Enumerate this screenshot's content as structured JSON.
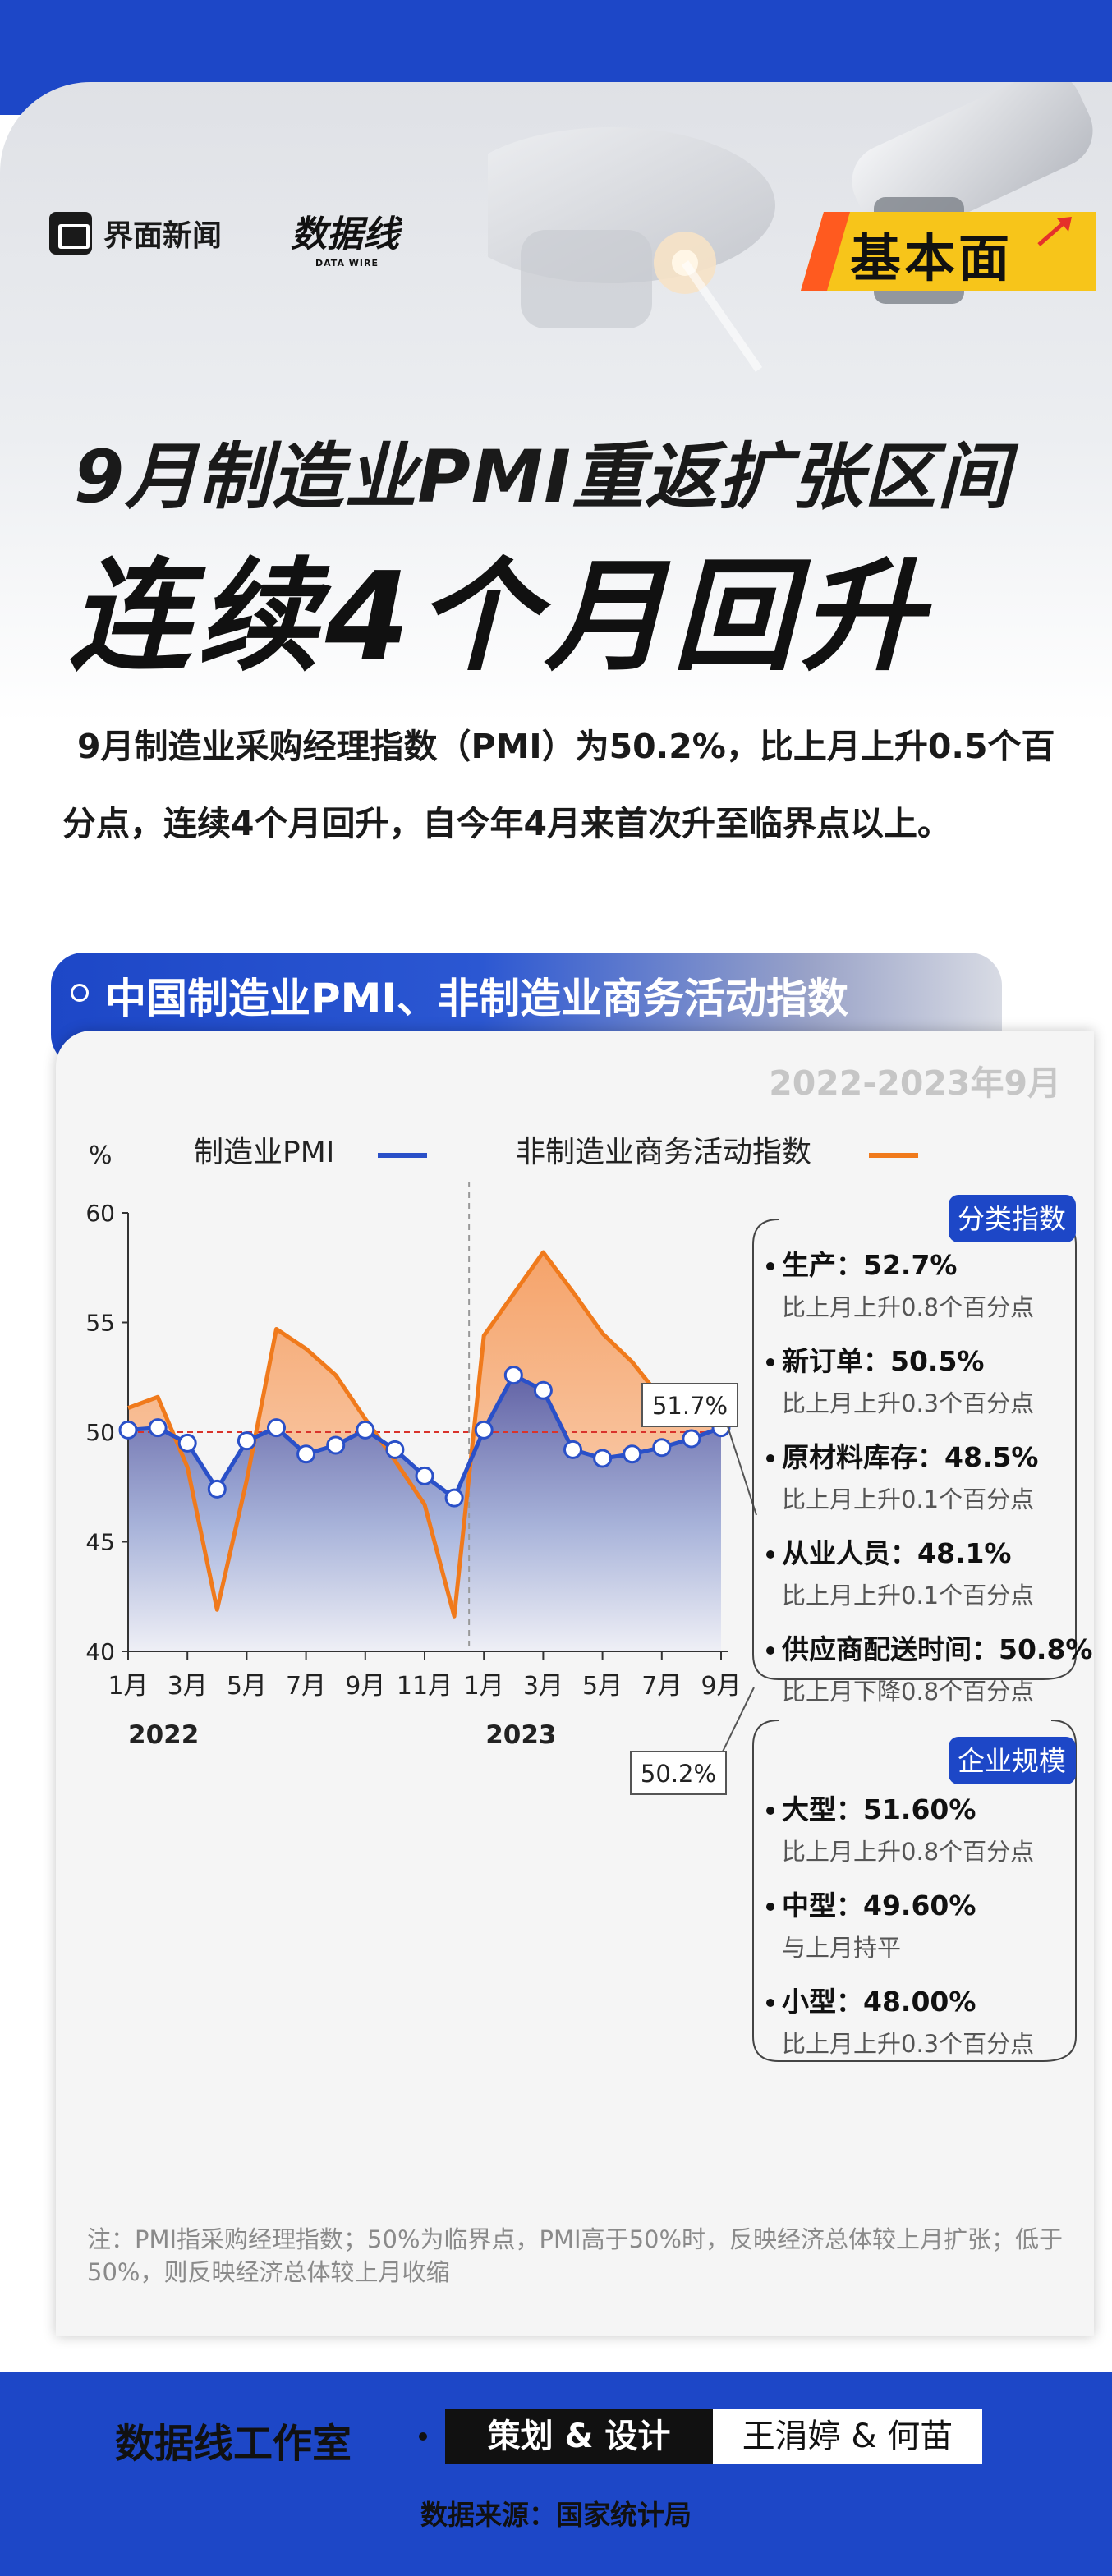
{
  "header": {
    "brand": "界面新闻",
    "logo_text": "数据线",
    "logo_sub": "DATA WIRE",
    "tag": "基本面"
  },
  "title": {
    "line1": "9月制造业PMI重返扩张区间",
    "line2": "连续4个月回升"
  },
  "intro": "9月制造业采购经理指数（PMI）为50.2%，比上月上升0.5个百分点，连续4个月回升，自今年4月来首次升至临界点以上。",
  "section": {
    "title": "中国制造业PMI、非制造业商务活动指数",
    "date_range": "2022-2023年9月"
  },
  "chart_data": {
    "type": "line",
    "title": "",
    "ylabel": "%",
    "ylim": [
      40,
      60
    ],
    "yticks": [
      40,
      45,
      50,
      55,
      60
    ],
    "reference_line": 50,
    "x": [
      "2022-01",
      "2022-02",
      "2022-03",
      "2022-04",
      "2022-05",
      "2022-06",
      "2022-07",
      "2022-08",
      "2022-09",
      "2022-10",
      "2022-11",
      "2022-12",
      "2023-01",
      "2023-02",
      "2023-03",
      "2023-04",
      "2023-05",
      "2023-06",
      "2023-07",
      "2023-08",
      "2023-09"
    ],
    "xtick_labels": [
      "1月",
      "3月",
      "5月",
      "7月",
      "9月",
      "11月",
      "1月",
      "3月",
      "5月",
      "7月",
      "9月"
    ],
    "xtick_index": [
      0,
      2,
      4,
      6,
      8,
      10,
      12,
      14,
      16,
      18,
      20
    ],
    "year_labels": [
      {
        "label": "2022",
        "index": 0
      },
      {
        "label": "2023",
        "index": 12
      }
    ],
    "divider_index": 11.5,
    "series": [
      {
        "name": "制造业PMI",
        "color": "#2a50c8",
        "values": [
          50.1,
          50.2,
          49.5,
          47.4,
          49.6,
          50.2,
          49.0,
          49.4,
          50.1,
          49.2,
          48.0,
          47.0,
          50.1,
          52.6,
          51.9,
          49.2,
          48.8,
          49.0,
          49.3,
          49.7,
          50.2
        ]
      },
      {
        "name": "非制造业商务活动指数",
        "color": "#f07a1c",
        "values": [
          51.1,
          51.6,
          48.4,
          41.9,
          47.8,
          54.7,
          53.8,
          52.6,
          50.6,
          48.7,
          46.7,
          41.6,
          54.4,
          56.3,
          58.2,
          56.4,
          54.5,
          53.2,
          51.5,
          51.0,
          51.7
        ]
      }
    ],
    "callouts": {
      "pmi_last": "50.2%",
      "nonmfg_last": "51.7%"
    }
  },
  "subindex": {
    "title": "分类指数",
    "items": [
      {
        "label": "生产：52.7%",
        "change": "比上月上升0.8个百分点"
      },
      {
        "label": "新订单：50.5%",
        "change": "比上月上升0.3个百分点"
      },
      {
        "label": "原材料库存：48.5%",
        "change": "比上月上升0.1个百分点"
      },
      {
        "label": "从业人员：48.1%",
        "change": "比上月上升0.1个百分点"
      },
      {
        "label": "供应商配送时间：50.8%",
        "change": "比上月下降0.8个百分点"
      }
    ]
  },
  "scale": {
    "title": "企业规模",
    "items": [
      {
        "label": "大型：51.60%",
        "change": "比上月上升0.8个百分点"
      },
      {
        "label": "中型：49.60%",
        "change": "与上月持平"
      },
      {
        "label": "小型：48.00%",
        "change": "比上月上升0.3个百分点"
      }
    ]
  },
  "note": "注：PMI指采购经理指数；50%为临界点，PMI高于50%时，反映经济总体较上月扩张；低于50%，则反映经济总体较上月收缩",
  "footer": {
    "studio": "数据线工作室",
    "role": "策划 & 设计",
    "names": "王涓婷 & 何苗",
    "source": "数据来源：国家统计局"
  },
  "colors": {
    "brand_blue": "#1d47c7",
    "accent_orange": "#f07a1c",
    "tag_yellow": "#f7c51a"
  }
}
